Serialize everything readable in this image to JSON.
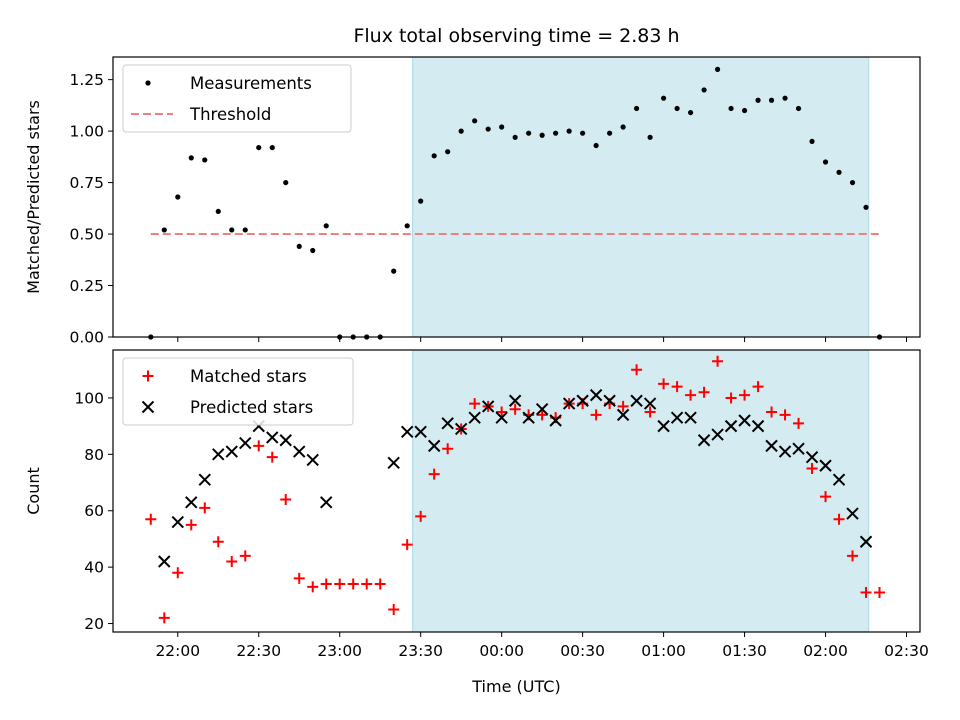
{
  "chart_data": [
    {
      "type": "scatter",
      "title": "Flux total observing time = 2.83 h",
      "xlabel": "",
      "ylabel": "Matched/Predicted stars",
      "ylim": [
        0,
        1.36
      ],
      "yticks": [
        "0.00",
        "0.25",
        "0.50",
        "0.75",
        "1.00",
        "1.25"
      ],
      "legend_position": "top-left",
      "shaded_region": {
        "x_start": "23:27",
        "x_end": "02:16",
        "color": "#d3ebf1"
      },
      "series": [
        {
          "name": "Measurements",
          "marker": "dot",
          "color": "#000000",
          "points": [
            [
              "21:50",
              0.0
            ],
            [
              "21:55",
              0.52
            ],
            [
              "22:00",
              0.68
            ],
            [
              "22:05",
              0.87
            ],
            [
              "22:10",
              0.86
            ],
            [
              "22:15",
              0.61
            ],
            [
              "22:20",
              0.52
            ],
            [
              "22:25",
              0.52
            ],
            [
              "22:30",
              0.92
            ],
            [
              "22:35",
              0.92
            ],
            [
              "22:40",
              0.75
            ],
            [
              "22:45",
              0.44
            ],
            [
              "22:50",
              0.42
            ],
            [
              "22:55",
              0.54
            ],
            [
              "23:00",
              0.0
            ],
            [
              "23:05",
              0.0
            ],
            [
              "23:10",
              0.0
            ],
            [
              "23:15",
              0.0
            ],
            [
              "23:20",
              0.32
            ],
            [
              "23:25",
              0.54
            ],
            [
              "23:30",
              0.66
            ],
            [
              "23:35",
              0.88
            ],
            [
              "23:40",
              0.9
            ],
            [
              "23:45",
              1.0
            ],
            [
              "23:50",
              1.05
            ],
            [
              "23:55",
              1.01
            ],
            [
              "00:00",
              1.02
            ],
            [
              "00:05",
              0.97
            ],
            [
              "00:10",
              0.99
            ],
            [
              "00:15",
              0.98
            ],
            [
              "00:20",
              0.99
            ],
            [
              "00:25",
              1.0
            ],
            [
              "00:30",
              0.99
            ],
            [
              "00:35",
              0.93
            ],
            [
              "00:40",
              0.99
            ],
            [
              "00:45",
              1.02
            ],
            [
              "00:50",
              1.11
            ],
            [
              "00:55",
              0.97
            ],
            [
              "01:00",
              1.16
            ],
            [
              "01:05",
              1.11
            ],
            [
              "01:10",
              1.09
            ],
            [
              "01:15",
              1.2
            ],
            [
              "01:20",
              1.3
            ],
            [
              "01:25",
              1.11
            ],
            [
              "01:30",
              1.1
            ],
            [
              "01:35",
              1.15
            ],
            [
              "01:40",
              1.15
            ],
            [
              "01:45",
              1.16
            ],
            [
              "01:50",
              1.11
            ],
            [
              "01:55",
              0.95
            ],
            [
              "02:00",
              0.85
            ],
            [
              "02:05",
              0.8
            ],
            [
              "02:10",
              0.75
            ],
            [
              "02:15",
              0.63
            ],
            [
              "02:20",
              0.0
            ]
          ]
        },
        {
          "name": "Threshold",
          "type": "dashed-line",
          "color": "#f08080",
          "points": [
            [
              "21:50",
              0.5
            ],
            [
              "02:20",
              0.5
            ]
          ]
        }
      ]
    },
    {
      "type": "scatter",
      "title": "",
      "xlabel": "Time (UTC)",
      "ylabel": "Count",
      "ylim": [
        17,
        117
      ],
      "xlim": [
        "21:36",
        "02:35"
      ],
      "xticks": [
        "22:00",
        "22:30",
        "23:00",
        "23:30",
        "00:00",
        "00:30",
        "01:00",
        "01:30",
        "02:00",
        "02:30"
      ],
      "yticks": [
        "20",
        "40",
        "60",
        "80",
        "100"
      ],
      "legend_position": "top-left",
      "shaded_region": {
        "x_start": "23:27",
        "x_end": "02:16",
        "color": "#d3ebf1"
      },
      "series": [
        {
          "name": "Matched stars",
          "marker": "plus",
          "color": "#ff0000",
          "points": [
            [
              "21:50",
              57
            ],
            [
              "21:55",
              22
            ],
            [
              "22:00",
              38
            ],
            [
              "22:05",
              55
            ],
            [
              "22:10",
              61
            ],
            [
              "22:15",
              49
            ],
            [
              "22:20",
              42
            ],
            [
              "22:25",
              44
            ],
            [
              "22:30",
              83
            ],
            [
              "22:35",
              79
            ],
            [
              "22:40",
              64
            ],
            [
              "22:45",
              36
            ],
            [
              "22:50",
              33
            ],
            [
              "22:55",
              34
            ],
            [
              "23:00",
              34
            ],
            [
              "23:05",
              34
            ],
            [
              "23:10",
              34
            ],
            [
              "23:15",
              34
            ],
            [
              "23:20",
              25
            ],
            [
              "23:25",
              48
            ],
            [
              "23:30",
              58
            ],
            [
              "23:35",
              73
            ],
            [
              "23:40",
              82
            ],
            [
              "23:45",
              89
            ],
            [
              "23:50",
              98
            ],
            [
              "23:55",
              97
            ],
            [
              "00:00",
              95
            ],
            [
              "00:05",
              96
            ],
            [
              "00:10",
              94
            ],
            [
              "00:15",
              94
            ],
            [
              "00:20",
              93
            ],
            [
              "00:25",
              98
            ],
            [
              "00:30",
              98
            ],
            [
              "00:35",
              94
            ],
            [
              "00:40",
              98
            ],
            [
              "00:45",
              97
            ],
            [
              "00:50",
              110
            ],
            [
              "00:55",
              95
            ],
            [
              "01:00",
              105
            ],
            [
              "01:05",
              104
            ],
            [
              "01:10",
              101
            ],
            [
              "01:15",
              102
            ],
            [
              "01:20",
              113
            ],
            [
              "01:25",
              100
            ],
            [
              "01:30",
              101
            ],
            [
              "01:35",
              104
            ],
            [
              "01:40",
              95
            ],
            [
              "01:45",
              94
            ],
            [
              "01:50",
              91
            ],
            [
              "01:55",
              75
            ],
            [
              "02:00",
              65
            ],
            [
              "02:05",
              57
            ],
            [
              "02:10",
              44
            ],
            [
              "02:15",
              31
            ],
            [
              "02:20",
              31
            ]
          ]
        },
        {
          "name": "Predicted stars",
          "marker": "x",
          "color": "#000000",
          "points": [
            [
              "21:55",
              42
            ],
            [
              "22:00",
              56
            ],
            [
              "22:05",
              63
            ],
            [
              "22:10",
              71
            ],
            [
              "22:15",
              80
            ],
            [
              "22:20",
              81
            ],
            [
              "22:25",
              84
            ],
            [
              "22:30",
              90
            ],
            [
              "22:35",
              86
            ],
            [
              "22:40",
              85
            ],
            [
              "22:45",
              81
            ],
            [
              "22:50",
              78
            ],
            [
              "22:55",
              63
            ],
            [
              "23:20",
              77
            ],
            [
              "23:25",
              88
            ],
            [
              "23:30",
              88
            ],
            [
              "23:35",
              83
            ],
            [
              "23:40",
              91
            ],
            [
              "23:45",
              89
            ],
            [
              "23:50",
              93
            ],
            [
              "23:55",
              97
            ],
            [
              "00:00",
              93
            ],
            [
              "00:05",
              99
            ],
            [
              "00:10",
              93
            ],
            [
              "00:15",
              96
            ],
            [
              "00:20",
              92
            ],
            [
              "00:25",
              98
            ],
            [
              "00:30",
              99
            ],
            [
              "00:35",
              101
            ],
            [
              "00:40",
              99
            ],
            [
              "00:45",
              94
            ],
            [
              "00:50",
              99
            ],
            [
              "00:55",
              98
            ],
            [
              "01:00",
              90
            ],
            [
              "01:05",
              93
            ],
            [
              "01:10",
              93
            ],
            [
              "01:15",
              85
            ],
            [
              "01:20",
              87
            ],
            [
              "01:25",
              90
            ],
            [
              "01:30",
              92
            ],
            [
              "01:35",
              90
            ],
            [
              "01:40",
              83
            ],
            [
              "01:45",
              81
            ],
            [
              "01:50",
              82
            ],
            [
              "01:55",
              79
            ],
            [
              "02:00",
              76
            ],
            [
              "02:05",
              71
            ],
            [
              "02:10",
              59
            ],
            [
              "02:15",
              49
            ]
          ]
        }
      ]
    }
  ]
}
